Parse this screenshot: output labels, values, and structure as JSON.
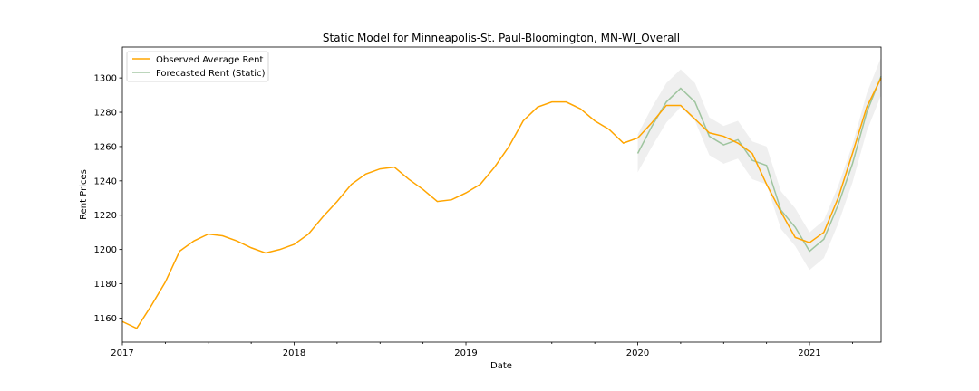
{
  "chart_data": {
    "type": "line",
    "title": "Static Model for Minneapolis-St. Paul-Bloomington, MN-WI_Overall",
    "xlabel": "Date",
    "ylabel": "Rent Prices",
    "xlim": [
      "2017-01",
      "2021-06"
    ],
    "ylim": [
      1146,
      1318
    ],
    "x_ticks": [
      "2017",
      "2018",
      "2019",
      "2020",
      "2021"
    ],
    "y_ticks": [
      1160,
      1180,
      1200,
      1220,
      1240,
      1260,
      1280,
      1300
    ],
    "grid": false,
    "legend": "top-left",
    "series": [
      {
        "name": "Observed Average Rent",
        "color": "#ffa500",
        "x": [
          "2017-01",
          "2017-02",
          "2017-03",
          "2017-04",
          "2017-05",
          "2017-06",
          "2017-07",
          "2017-08",
          "2017-09",
          "2017-10",
          "2017-11",
          "2017-12",
          "2018-01",
          "2018-02",
          "2018-03",
          "2018-04",
          "2018-05",
          "2018-06",
          "2018-07",
          "2018-08",
          "2018-09",
          "2018-10",
          "2018-11",
          "2018-12",
          "2019-01",
          "2019-02",
          "2019-03",
          "2019-04",
          "2019-05",
          "2019-06",
          "2019-07",
          "2019-08",
          "2019-09",
          "2019-10",
          "2019-11",
          "2019-12",
          "2020-01",
          "2020-02",
          "2020-03",
          "2020-04",
          "2020-05",
          "2020-06",
          "2020-07",
          "2020-08",
          "2020-09",
          "2020-10",
          "2020-11",
          "2020-12",
          "2021-01",
          "2021-02",
          "2021-03",
          "2021-04",
          "2021-05",
          "2021-06"
        ],
        "values": [
          1158,
          1154,
          1167,
          1181,
          1199,
          1205,
          1209,
          1208,
          1205,
          1201,
          1198,
          1200,
          1203,
          1209,
          1219,
          1228,
          1238,
          1244,
          1247,
          1248,
          1241,
          1235,
          1228,
          1229,
          1233,
          1238,
          1248,
          1260,
          1275,
          1283,
          1286,
          1286,
          1282,
          1275,
          1270,
          1262,
          1265,
          1274,
          1284,
          1284,
          1276,
          1268,
          1266,
          1262,
          1256,
          1238,
          1222,
          1207,
          1204,
          1210,
          1230,
          1256,
          1283,
          1300
        ]
      },
      {
        "name": "Forecasted Rent (Static)",
        "color": "#8fbc8f",
        "x": [
          "2020-01",
          "2020-02",
          "2020-03",
          "2020-04",
          "2020-05",
          "2020-06",
          "2020-07",
          "2020-08",
          "2020-09",
          "2020-10",
          "2020-11",
          "2020-12",
          "2021-01",
          "2021-02",
          "2021-03",
          "2021-04",
          "2021-05",
          "2021-06"
        ],
        "values": [
          1256,
          1272,
          1286,
          1294,
          1286,
          1266,
          1261,
          1264,
          1252,
          1249,
          1223,
          1213,
          1199,
          1206,
          1226,
          1250,
          1280,
          1301
        ],
        "ci_lower": [
          1245,
          1260,
          1274,
          1283,
          1275,
          1255,
          1250,
          1253,
          1241,
          1238,
          1212,
          1202,
          1188,
          1195,
          1215,
          1239,
          1269,
          1290
        ],
        "ci_upper": [
          1267,
          1283,
          1297,
          1305,
          1297,
          1277,
          1272,
          1275,
          1263,
          1260,
          1234,
          1224,
          1210,
          1217,
          1237,
          1261,
          1291,
          1312
        ]
      }
    ]
  }
}
